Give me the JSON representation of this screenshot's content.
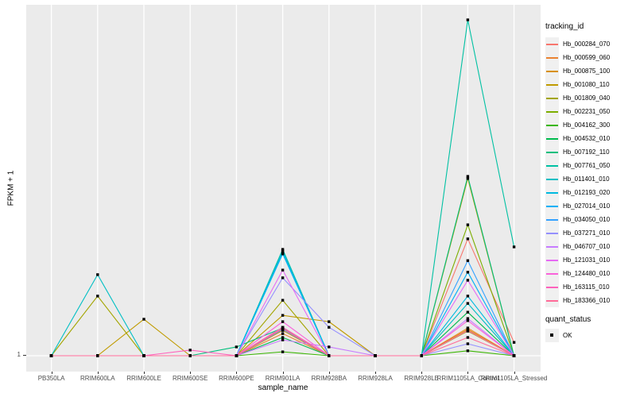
{
  "figure": {
    "bg": "#FFFFFF",
    "panel_bg": "#EBEBEB",
    "grid_color": "#FFFFFF",
    "tick_color": "#333333",
    "tick_label_color": "#4D4D4D"
  },
  "chart_data": {
    "type": "line",
    "title": "",
    "xlabel": "sample_name",
    "ylabel": "FPKM + 1",
    "y_ticks": [
      "1"
    ],
    "y_axis_note": "Only the value 1 is labeled at the baseline; series values are estimated fractions of panel height above the y=1 baseline (0 = FPKM+1 of 1).",
    "legend_position": "right",
    "grid": "vertical category gridlines, white on gray panel",
    "categories": [
      "PB350LA",
      "RRIM600LA",
      "RRIM600LE",
      "RRIM600SE",
      "RRIM600PE",
      "RRIM901LA",
      "RRIM928BA",
      "RRIM928LA",
      "RRIM928LE",
      "RRIM1105LA_Control",
      "RRIM1105LA_Stressed"
    ],
    "series": [
      {
        "name": "Hb_000284_070",
        "color": "#F8766D",
        "values": [
          0,
          0,
          0,
          0,
          0,
          0.081,
          0,
          0,
          0,
          0.333,
          0.038
        ]
      },
      {
        "name": "Hb_000599_060",
        "color": "#EA8331",
        "values": [
          0,
          0,
          0,
          0,
          0,
          0.063,
          0,
          0,
          0,
          0.079,
          0
        ]
      },
      {
        "name": "Hb_000875_100",
        "color": "#D89000",
        "values": [
          0,
          0,
          0,
          0,
          0,
          0.072,
          0,
          0,
          0,
          0.075,
          0
        ]
      },
      {
        "name": "Hb_001080_110",
        "color": "#C09B00",
        "values": [
          0,
          0,
          0.104,
          0,
          0,
          0.115,
          0.097,
          0,
          0,
          0.505,
          0
        ]
      },
      {
        "name": "Hb_001809_040",
        "color": "#A3A500",
        "values": [
          0,
          0.17,
          0,
          0,
          0,
          0.158,
          0,
          0,
          0,
          0.07,
          0
        ]
      },
      {
        "name": "Hb_002231_050",
        "color": "#7CAE00",
        "values": [
          0,
          0,
          0,
          0,
          0,
          0.077,
          0,
          0,
          0,
          0.373,
          0
        ]
      },
      {
        "name": "Hb_004162_300",
        "color": "#39B600",
        "values": [
          0,
          0,
          0,
          0,
          0,
          0.011,
          0,
          0,
          0,
          0.014,
          0
        ]
      },
      {
        "name": "Hb_004532_010",
        "color": "#00BB4E",
        "values": [
          0,
          0,
          0,
          0,
          0,
          0.052,
          0,
          0,
          0,
          0.124,
          0
        ]
      },
      {
        "name": "Hb_007192_110",
        "color": "#00BF7D",
        "values": [
          0,
          0,
          0,
          0,
          0.025,
          0.079,
          0,
          0,
          0,
          0.511,
          0
        ]
      },
      {
        "name": "Hb_007761_050",
        "color": "#00C1A3",
        "values": [
          0,
          0,
          0,
          0,
          0,
          0.303,
          0,
          0,
          0,
          0.957,
          0.31
        ]
      },
      {
        "name": "Hb_011401_010",
        "color": "#00BFC4",
        "values": [
          0,
          0.231,
          0,
          0,
          0,
          0.299,
          0,
          0,
          0,
          0.149,
          0
        ]
      },
      {
        "name": "Hb_012193_020",
        "color": "#00BAE0",
        "values": [
          0,
          0,
          0,
          0,
          0,
          0.294,
          0,
          0,
          0,
          0.17,
          0
        ]
      },
      {
        "name": "Hb_027014_010",
        "color": "#00B0F6",
        "values": [
          0,
          0,
          0,
          0,
          0,
          0.29,
          0,
          0,
          0,
          0.238,
          0
        ]
      },
      {
        "name": "Hb_034050_010",
        "color": "#35A2FF",
        "values": [
          0,
          0,
          0,
          0,
          0,
          0.075,
          0,
          0,
          0,
          0.271,
          0
        ]
      },
      {
        "name": "Hb_037271_010",
        "color": "#9590FF",
        "values": [
          0,
          0,
          0,
          0,
          0,
          0.222,
          0.081,
          0,
          0,
          0.034,
          0
        ]
      },
      {
        "name": "Hb_046707_010",
        "color": "#C77CFF",
        "values": [
          0,
          0,
          0,
          0,
          0,
          0.045,
          0.025,
          0,
          0,
          0.106,
          0
        ]
      },
      {
        "name": "Hb_121031_010",
        "color": "#E76BF3",
        "values": [
          0,
          0,
          0,
          0,
          0,
          0.244,
          0,
          0,
          0,
          0.215,
          0
        ]
      },
      {
        "name": "Hb_124480_010",
        "color": "#FA62DB",
        "values": [
          0,
          0,
          0,
          0,
          0,
          0.097,
          0,
          0,
          0,
          0.1,
          0
        ]
      },
      {
        "name": "Hb_163115_010",
        "color": "#FF62BC",
        "values": [
          0,
          0,
          0,
          0.016,
          0,
          0.081,
          0,
          0,
          0,
          0.072,
          0
        ]
      },
      {
        "name": "Hb_183366_010",
        "color": "#FF6A98",
        "values": [
          0,
          0,
          0,
          0,
          0,
          0.077,
          0,
          0,
          0,
          0.052,
          0
        ]
      }
    ],
    "marker": {
      "shape": "square",
      "color": "#000000",
      "label": "OK"
    }
  },
  "legend": {
    "tracking_title": "tracking_id",
    "quant_title": "quant_status",
    "quant_items": [
      {
        "label": "OK"
      }
    ]
  }
}
